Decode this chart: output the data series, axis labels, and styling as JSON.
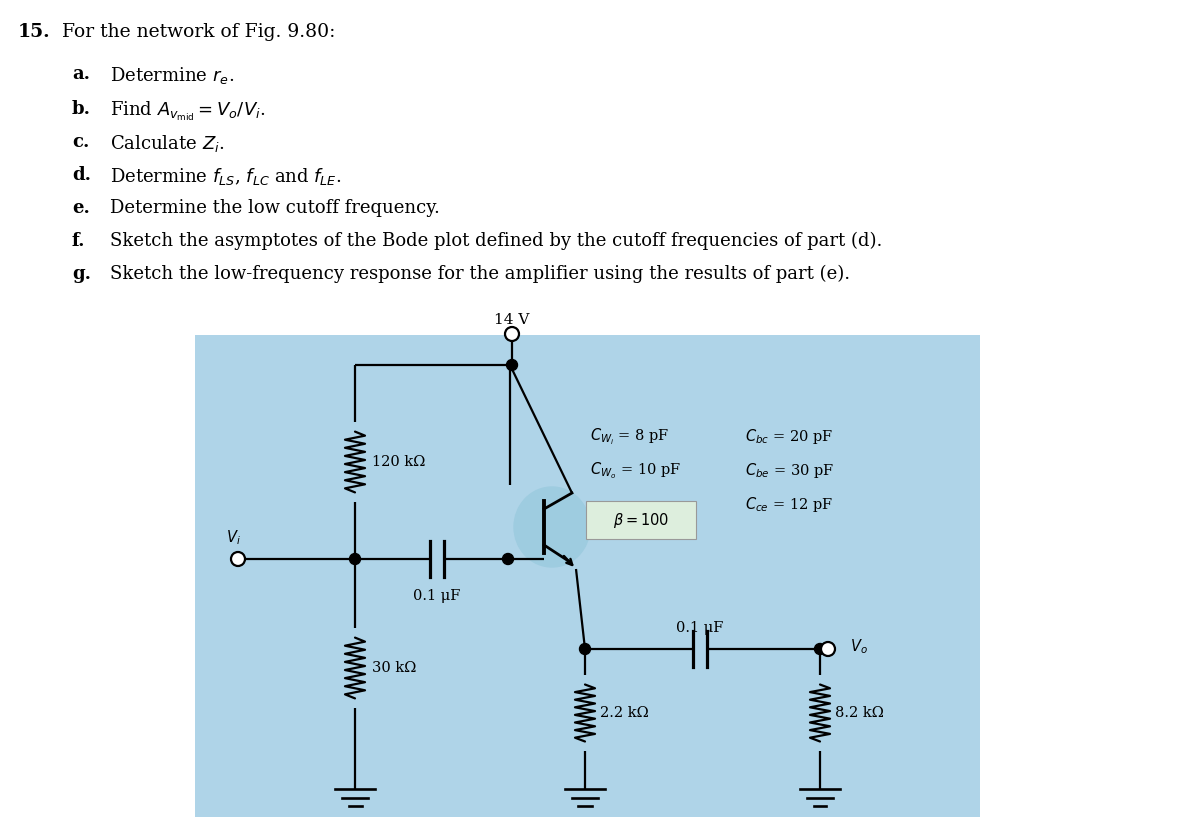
{
  "title_number": "15.",
  "title_text": "For the network of Fig. 9.80:",
  "list_items": [
    [
      "a.",
      "Determine $r_e$."
    ],
    [
      "b.",
      "Find $A_{v_{\\mathrm{mid}}} = V_o/V_i$."
    ],
    [
      "c.",
      "Calculate $Z_i$."
    ],
    [
      "d.",
      "Determine $f_{LS}$, $f_{LC}$ and $f_{LE}$."
    ],
    [
      "e.",
      "Determine the low cutoff frequency."
    ],
    [
      "f.",
      "Sketch the asymptotes of the Bode plot defined by the cutoff frequencies of part (d)."
    ],
    [
      "g.",
      "Sketch the low-frequency response for the amplifier using the results of part (e)."
    ]
  ],
  "vcc_label": "14 V",
  "r1_label": "120 kΩ",
  "r2_label": "30 kΩ",
  "rc_label": "2.2 kΩ",
  "rl_label": "8.2 kΩ",
  "cs_label": "0.1 μF",
  "ce_label": "0.1 μF",
  "beta_label": "$\\beta = 100$",
  "cwi_label": "$C_{W_i}$ = 8 pF",
  "cwo_label": "$C_{W_o}$ = 10 pF",
  "cbc_label": "$C_{bc}$ = 20 pF",
  "cbe_label": "$C_{be}$ = 30 pF",
  "cce_label": "$C_{ce}$ = 12 pF",
  "vi_label": "$V_i$",
  "vo_label": "$V_o$",
  "bg_color": "#afd4e8",
  "text_color": "black"
}
